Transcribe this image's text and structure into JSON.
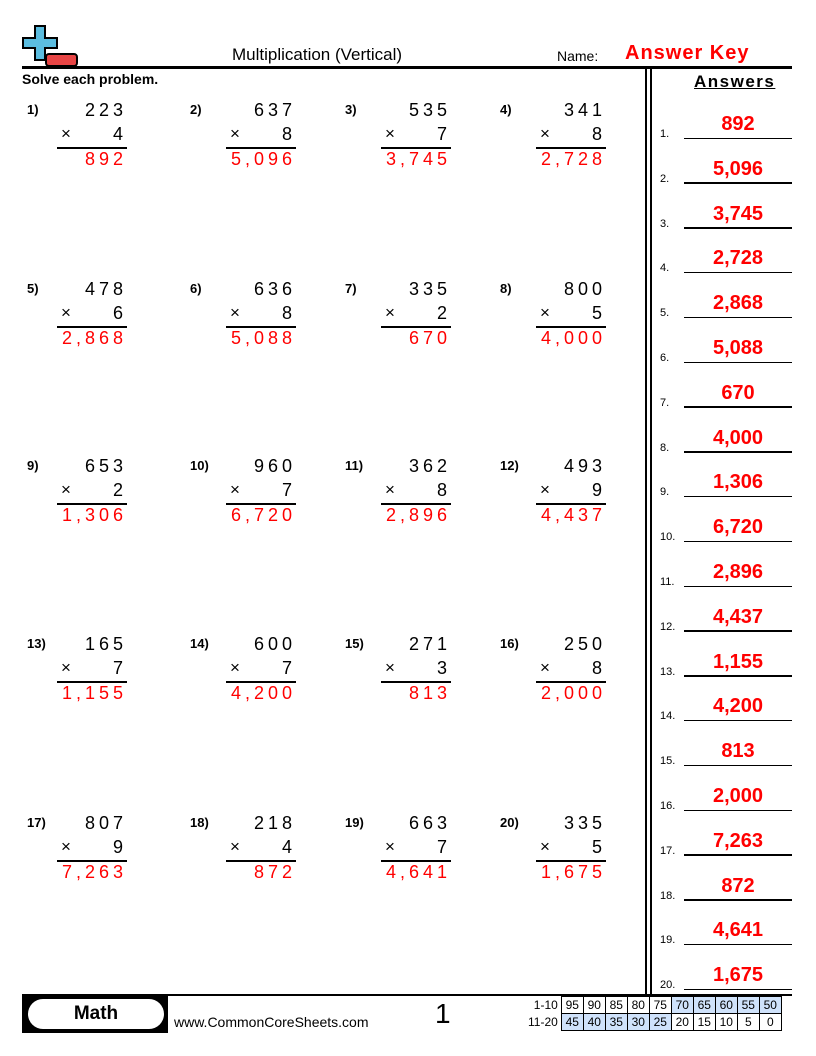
{
  "header": {
    "title": "Multiplication (Vertical)",
    "name_label": "Name:",
    "name_value": "Answer Key",
    "logo": "plus-minus-logo-icon"
  },
  "instructions": "Solve each problem.",
  "answers_title": "Answers",
  "times_symbol": "×",
  "problems": [
    {
      "n": "1)",
      "top": "223",
      "mult": "4",
      "answer": "892",
      "key": "892"
    },
    {
      "n": "2)",
      "top": "637",
      "mult": "8",
      "answer": "5,096",
      "key": "5,096"
    },
    {
      "n": "3)",
      "top": "535",
      "mult": "7",
      "answer": "3,745",
      "key": "3,745"
    },
    {
      "n": "4)",
      "top": "341",
      "mult": "8",
      "answer": "2,728",
      "key": "2,728"
    },
    {
      "n": "5)",
      "top": "478",
      "mult": "6",
      "answer": "2,868",
      "key": "2,868"
    },
    {
      "n": "6)",
      "top": "636",
      "mult": "8",
      "answer": "5,088",
      "key": "5,088"
    },
    {
      "n": "7)",
      "top": "335",
      "mult": "2",
      "answer": "670",
      "key": "670"
    },
    {
      "n": "8)",
      "top": "800",
      "mult": "5",
      "answer": "4,000",
      "key": "4,000"
    },
    {
      "n": "9)",
      "top": "653",
      "mult": "2",
      "answer": "1,306",
      "key": "1,306"
    },
    {
      "n": "10)",
      "top": "960",
      "mult": "7",
      "answer": "6,720",
      "key": "6,720"
    },
    {
      "n": "11)",
      "top": "362",
      "mult": "8",
      "answer": "2,896",
      "key": "2,896"
    },
    {
      "n": "12)",
      "top": "493",
      "mult": "9",
      "answer": "4,437",
      "key": "4,437"
    },
    {
      "n": "13)",
      "top": "165",
      "mult": "7",
      "answer": "1,155",
      "key": "1,155"
    },
    {
      "n": "14)",
      "top": "600",
      "mult": "7",
      "answer": "4,200",
      "key": "4,200"
    },
    {
      "n": "15)",
      "top": "271",
      "mult": "3",
      "answer": "813",
      "key": "813"
    },
    {
      "n": "16)",
      "top": "250",
      "mult": "8",
      "answer": "2,000",
      "key": "2,000"
    },
    {
      "n": "17)",
      "top": "807",
      "mult": "9",
      "answer": "7,263",
      "key": "7,263"
    },
    {
      "n": "18)",
      "top": "218",
      "mult": "4",
      "answer": "872",
      "key": "872"
    },
    {
      "n": "19)",
      "top": "663",
      "mult": "7",
      "answer": "4,641",
      "key": "4,641"
    },
    {
      "n": "20)",
      "top": "335",
      "mult": "5",
      "answer": "1,675",
      "key": "1,675"
    }
  ],
  "answer_labels": [
    "1.",
    "2.",
    "3.",
    "4.",
    "5.",
    "6.",
    "7.",
    "8.",
    "9.",
    "10.",
    "11.",
    "12.",
    "13.",
    "14.",
    "15.",
    "16.",
    "17.",
    "18.",
    "19.",
    "20."
  ],
  "footer": {
    "subject": "Math",
    "site": "www.CommonCoreSheets.com",
    "page": "1",
    "score_rows": [
      {
        "label": "1-10",
        "values": [
          "95",
          "90",
          "85",
          "80",
          "75",
          "70",
          "65",
          "60",
          "55",
          "50"
        ],
        "highlight_from": 5
      },
      {
        "label": "11-20",
        "values": [
          "45",
          "40",
          "35",
          "30",
          "25",
          "20",
          "15",
          "10",
          "5",
          "0"
        ],
        "highlight_to": 5
      }
    ],
    "highlight_color": "#cfe2fb"
  },
  "colors": {
    "answer": "#ff0000",
    "logo_plus": "#5bbde0",
    "logo_minus": "#e84545"
  }
}
